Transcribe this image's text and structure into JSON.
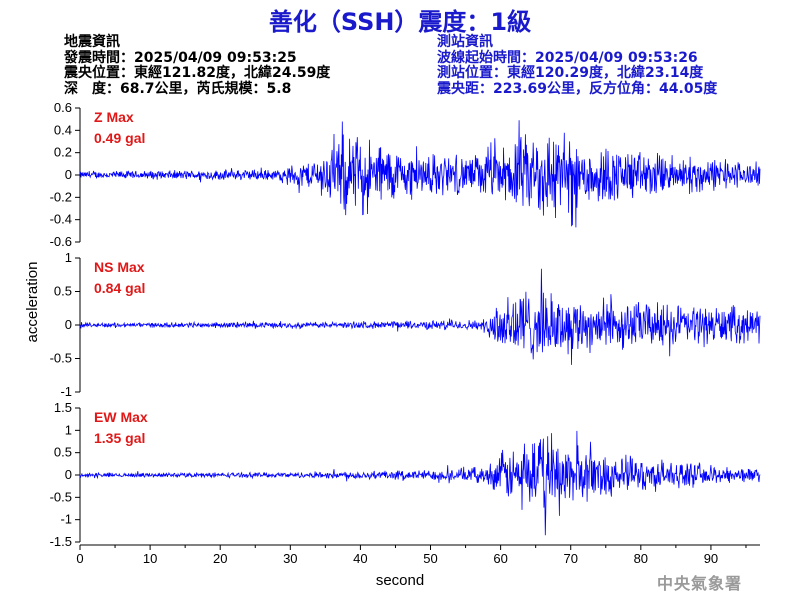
{
  "header": {
    "title": "善化（SSH）震度：1級"
  },
  "quake_info": {
    "heading": "地震資訊",
    "origin_time": "發震時間：2025/04/09 09:53:25",
    "epicenter": "震央位置：東經121.82度，北緯24.59度",
    "depth_magnitude": "深　度：68.7公里，芮氏規模：5.8"
  },
  "station_info": {
    "heading": "測站資訊",
    "wave_start": "波線起始時間：2025/04/09 09:53:26",
    "station_location": "測站位置：東經120.29度，北緯23.14度",
    "distance_azimuth": "震央距：223.69公里，反方位角：44.05度"
  },
  "credit": "中央氣象署",
  "chart_data": {
    "type": "line",
    "xlabel": "second",
    "ylabel": "acceleration",
    "xlim": [
      0,
      97
    ],
    "xticks": [
      0,
      10,
      20,
      30,
      40,
      50,
      60,
      70,
      80,
      90
    ],
    "line_color": "#0000ff",
    "max_label_color": "#e01818",
    "panels": [
      {
        "name": "Z",
        "max_title": "Z Max",
        "max_value": "0.49 gal",
        "ylim": [
          -0.6,
          0.6
        ],
        "yticks": [
          -0.6,
          -0.4,
          -0.2,
          0,
          0.2,
          0.4,
          0.6
        ],
        "ytick_labels": [
          "-0.6",
          "-0.4",
          "-0.2",
          "0",
          "0.2",
          "0.4",
          "0.6"
        ],
        "peak": 0.49,
        "envelope": [
          {
            "t": 0,
            "amp": 0.03
          },
          {
            "t": 29,
            "amp": 0.05
          },
          {
            "t": 30.5,
            "amp": 0.1
          },
          {
            "t": 33,
            "amp": 0.12
          },
          {
            "t": 36,
            "amp": 0.25
          },
          {
            "t": 38,
            "amp": 0.36
          },
          {
            "t": 42,
            "amp": 0.3
          },
          {
            "t": 46,
            "amp": 0.2
          },
          {
            "t": 55,
            "amp": 0.16
          },
          {
            "t": 60,
            "amp": 0.22
          },
          {
            "t": 63,
            "amp": 0.32
          },
          {
            "t": 66,
            "amp": 0.42
          },
          {
            "t": 70,
            "amp": 0.3
          },
          {
            "t": 80,
            "amp": 0.2
          },
          {
            "t": 90,
            "amp": 0.14
          },
          {
            "t": 97,
            "amp": 0.1
          }
        ]
      },
      {
        "name": "NS",
        "max_title": "NS Max",
        "max_value": "0.84 gal",
        "ylim": [
          -1,
          1
        ],
        "yticks": [
          -1,
          -0.5,
          0,
          0.5,
          1
        ],
        "ytick_labels": [
          "-1",
          "-0.5",
          "0",
          "0.5",
          "1"
        ],
        "peak": 0.84,
        "envelope": [
          {
            "t": 0,
            "amp": 0.04
          },
          {
            "t": 30,
            "amp": 0.05
          },
          {
            "t": 40,
            "amp": 0.06
          },
          {
            "t": 50,
            "amp": 0.08
          },
          {
            "t": 58,
            "amp": 0.1
          },
          {
            "t": 59.5,
            "amp": 0.55
          },
          {
            "t": 62,
            "amp": 0.72
          },
          {
            "t": 66,
            "amp": 0.6
          },
          {
            "t": 70,
            "amp": 0.5
          },
          {
            "t": 80,
            "amp": 0.42
          },
          {
            "t": 90,
            "amp": 0.36
          },
          {
            "t": 97,
            "amp": 0.3
          }
        ]
      },
      {
        "name": "EW",
        "max_title": "EW Max",
        "max_value": "1.35 gal",
        "ylim": [
          -1.5,
          1.5
        ],
        "yticks": [
          -1.5,
          -1,
          -0.5,
          0,
          0.5,
          1,
          1.5
        ],
        "ytick_labels": [
          "-1.5",
          "-1",
          "-0.5",
          "0",
          "0.5",
          "1",
          "1.5"
        ],
        "peak": 1.35,
        "envelope": [
          {
            "t": 0,
            "amp": 0.05
          },
          {
            "t": 30,
            "amp": 0.06
          },
          {
            "t": 40,
            "amp": 0.1
          },
          {
            "t": 50,
            "amp": 0.12
          },
          {
            "t": 58,
            "amp": 0.2
          },
          {
            "t": 60,
            "amp": 0.55
          },
          {
            "t": 64,
            "amp": 0.75
          },
          {
            "t": 67,
            "amp": 1.0
          },
          {
            "t": 72,
            "amp": 0.6
          },
          {
            "t": 80,
            "amp": 0.4
          },
          {
            "t": 90,
            "amp": 0.22
          },
          {
            "t": 97,
            "amp": 0.15
          }
        ]
      }
    ]
  }
}
